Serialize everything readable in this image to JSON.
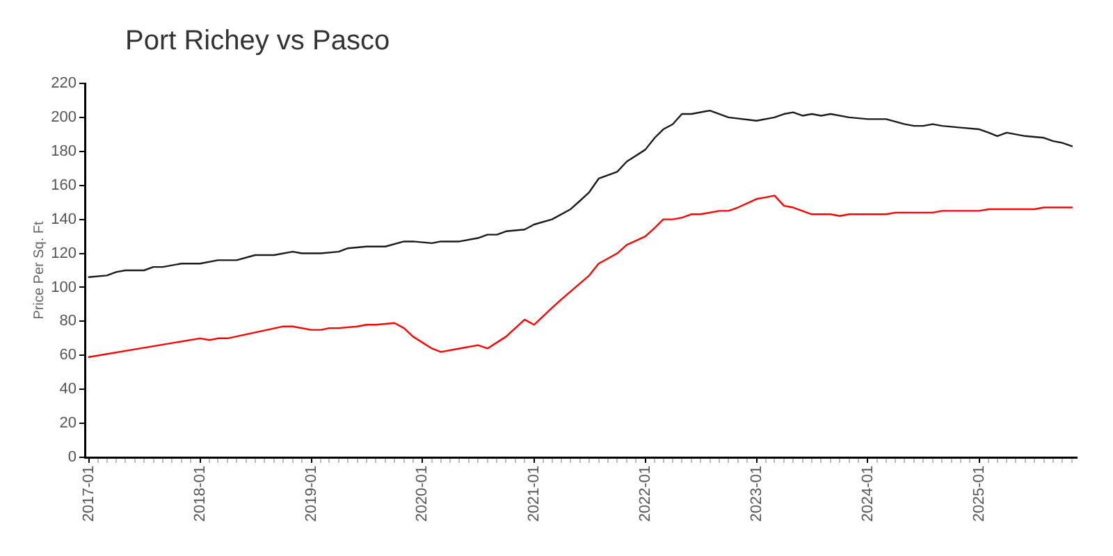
{
  "chart_data": {
    "type": "line",
    "title": "Port Richey vs Pasco",
    "ylabel": "Price Per Sq. Ft",
    "marker": "none",
    "xlim": [
      "2016-12-19",
      "2025-11-17"
    ],
    "ylim": [
      0,
      220
    ],
    "yticks": [
      0,
      20,
      40,
      60,
      80,
      100,
      120,
      140,
      160,
      180,
      200,
      220
    ],
    "xticks": [
      "2017-01",
      {
        "value": "2017-02",
        "label": null
      },
      {
        "value": "2017-03",
        "label": null
      },
      {
        "value": "2017-04",
        "label": null
      },
      {
        "value": "2017-05",
        "label": null
      },
      {
        "value": "2017-06",
        "label": null
      },
      {
        "value": "2017-07",
        "label": null
      },
      {
        "value": "2017-08",
        "label": null
      },
      {
        "value": "2017-09",
        "label": null
      },
      {
        "value": "2017-10",
        "label": null
      },
      {
        "value": "2017-11",
        "label": null
      },
      {
        "value": "2017-12",
        "label": null
      },
      "2018-01",
      {
        "value": "2018-02",
        "label": null
      },
      {
        "value": "2018-03",
        "label": null
      },
      {
        "value": "2018-04",
        "label": null
      },
      {
        "value": "2018-05",
        "label": null
      },
      {
        "value": "2018-06",
        "label": null
      },
      {
        "value": "2018-07",
        "label": null
      },
      {
        "value": "2018-08",
        "label": null
      },
      {
        "value": "2018-09",
        "label": null
      },
      {
        "value": "2018-10",
        "label": null
      },
      {
        "value": "2018-11",
        "label": null
      },
      {
        "value": "2018-12",
        "label": null
      },
      "2019-01",
      {
        "value": "2019-02",
        "label": null
      },
      {
        "value": "2019-03",
        "label": null
      },
      {
        "value": "2019-04",
        "label": null
      },
      {
        "value": "2019-05",
        "label": null
      },
      {
        "value": "2019-06",
        "label": null
      },
      {
        "value": "2019-07",
        "label": null
      },
      {
        "value": "2019-08",
        "label": null
      },
      {
        "value": "2019-09",
        "label": null
      },
      {
        "value": "2019-10",
        "label": null
      },
      {
        "value": "2019-11",
        "label": null
      },
      {
        "value": "2019-12",
        "label": null
      },
      "2020-01",
      {
        "value": "2020-02",
        "label": null
      },
      {
        "value": "2020-03",
        "label": null
      },
      {
        "value": "2020-04",
        "label": null
      },
      {
        "value": "2020-05",
        "label": null
      },
      {
        "value": "2020-06",
        "label": null
      },
      {
        "value": "2020-07",
        "label": null
      },
      {
        "value": "2020-08",
        "label": null
      },
      {
        "value": "2020-09",
        "label": null
      },
      {
        "value": "2020-10",
        "label": null
      },
      {
        "value": "2020-11",
        "label": null
      },
      {
        "value": "2020-12",
        "label": null
      },
      "2021-01",
      {
        "value": "2021-02",
        "label": null
      },
      {
        "value": "2021-03",
        "label": null
      },
      {
        "value": "2021-04",
        "label": null
      },
      {
        "value": "2021-05",
        "label": null
      },
      {
        "value": "2021-06",
        "label": null
      },
      {
        "value": "2021-07",
        "label": null
      },
      {
        "value": "2021-08",
        "label": null
      },
      {
        "value": "2021-09",
        "label": null
      },
      {
        "value": "2021-10",
        "label": null
      },
      {
        "value": "2021-11",
        "label": null
      },
      {
        "value": "2021-12",
        "label": null
      },
      "2022-01",
      {
        "value": "2022-02",
        "label": null
      },
      {
        "value": "2022-03",
        "label": null
      },
      {
        "value": "2022-04",
        "label": null
      },
      {
        "value": "2022-05",
        "label": null
      },
      {
        "value": "2022-06",
        "label": null
      },
      {
        "value": "2022-07",
        "label": null
      },
      {
        "value": "2022-08",
        "label": null
      },
      {
        "value": "2022-09",
        "label": null
      },
      {
        "value": "2022-10",
        "label": null
      },
      {
        "value": "2022-11",
        "label": null
      },
      {
        "value": "2022-12",
        "label": null
      },
      "2023-01",
      {
        "value": "2023-02",
        "label": null
      },
      {
        "value": "2023-03",
        "label": null
      },
      {
        "value": "2023-04",
        "label": null
      },
      {
        "value": "2023-05",
        "label": null
      },
      {
        "value": "2023-06",
        "label": null
      },
      {
        "value": "2023-07",
        "label": null
      },
      {
        "value": "2023-08",
        "label": null
      },
      {
        "value": "2023-09",
        "label": null
      },
      {
        "value": "2023-10",
        "label": null
      },
      {
        "value": "2023-11",
        "label": null
      },
      {
        "value": "2023-12",
        "label": null
      },
      "2024-01",
      {
        "value": "2024-02",
        "label": null
      },
      {
        "value": "2024-03",
        "label": null
      },
      {
        "value": "2024-04",
        "label": null
      },
      {
        "value": "2024-05",
        "label": null
      },
      {
        "value": "2024-06",
        "label": null
      },
      {
        "value": "2024-07",
        "label": null
      },
      {
        "value": "2024-08",
        "label": null
      },
      {
        "value": "2024-09",
        "label": null
      },
      {
        "value": "2024-10",
        "label": null
      },
      {
        "value": "2024-11",
        "label": null
      },
      {
        "value": "2024-12",
        "label": null
      },
      "2025-01",
      {
        "value": "2025-02",
        "label": null
      },
      {
        "value": "2025-03",
        "label": null
      },
      {
        "value": "2025-04",
        "label": null
      },
      {
        "value": "2025-05",
        "label": null
      },
      {
        "value": "2025-06",
        "label": null
      },
      {
        "value": "2025-07",
        "label": null
      },
      {
        "value": "2025-08",
        "label": null
      },
      {
        "value": "2025-09",
        "label": null
      },
      {
        "value": "2025-10",
        "label": null
      },
      {
        "value": "2025-11",
        "label": null
      }
    ],
    "series": [
      {
        "color": "#1a1a1a",
        "x": [
          "2017-01",
          "2017-03",
          "2017-04",
          "2017-05",
          "2017-07",
          "2017-08",
          "2017-09",
          "2017-11",
          "2018-01",
          "2018-03",
          "2018-05",
          "2018-07",
          "2018-09",
          "2018-11",
          "2018-12",
          "2019-02",
          "2019-04",
          "2019-05",
          "2019-07",
          "2019-09",
          "2019-11",
          "2019-12",
          "2020-02",
          "2020-03",
          "2020-05",
          "2020-07",
          "2020-08",
          "2020-09",
          "2020-10",
          "2020-12",
          "2021-01",
          "2021-03",
          "2021-05",
          "2021-06",
          "2021-07",
          "2021-08",
          "2021-10",
          "2021-11",
          "2022-01",
          "2022-02",
          "2022-03",
          "2022-04",
          "2022-05",
          "2022-06",
          "2022-08",
          "2022-10",
          "2023-01",
          "2023-03",
          "2023-04",
          "2023-05",
          "2023-06",
          "2023-07",
          "2023-08",
          "2023-09",
          "2023-11",
          "2024-01",
          "2024-03",
          "2024-05",
          "2024-06",
          "2024-07",
          "2024-08",
          "2024-09",
          "2024-11",
          "2025-01",
          "2025-02",
          "2025-03",
          "2025-04",
          "2025-06",
          "2025-08",
          "2025-09",
          "2025-10",
          "2025-11"
        ],
        "values": [
          106,
          107,
          109,
          110,
          110,
          112,
          112,
          114,
          114,
          116,
          116,
          119,
          119,
          121,
          120,
          120,
          121,
          123,
          124,
          124,
          127,
          127,
          126,
          127,
          127,
          129,
          131,
          131,
          133,
          134,
          137,
          140,
          146,
          151,
          156,
          164,
          168,
          174,
          181,
          188,
          193,
          196,
          202,
          202,
          204,
          200,
          198,
          200,
          202,
          203,
          201,
          202,
          201,
          202,
          200,
          199,
          199,
          196,
          195,
          195,
          196,
          195,
          194,
          193,
          191,
          189,
          191,
          189,
          188,
          186,
          185,
          183
        ]
      },
      {
        "color": "#ff0000",
        "x": [
          "2017-01",
          "2018-01",
          "2018-02",
          "2018-03",
          "2018-04",
          "2018-10",
          "2018-11",
          "2019-01",
          "2019-02",
          "2019-03",
          "2019-04",
          "2019-06",
          "2019-07",
          "2019-08",
          "2019-10",
          "2019-11",
          "2019-12",
          "2020-02",
          "2020-03",
          "2020-05",
          "2020-07",
          "2020-08",
          "2020-10",
          "2020-12",
          "2021-01",
          "2021-03",
          "2021-04",
          "2021-07",
          "2021-08",
          "2021-10",
          "2021-11",
          "2022-01",
          "2022-02",
          "2022-03",
          "2022-04",
          "2022-05",
          "2022-06",
          "2022-07",
          "2022-09",
          "2022-10",
          "2022-11",
          "2023-01",
          "2023-02",
          "2023-03",
          "2023-04",
          "2023-05",
          "2023-07",
          "2023-09",
          "2023-10",
          "2023-11",
          "2024-03",
          "2024-04",
          "2024-08",
          "2024-09",
          "2025-01",
          "2025-02",
          "2025-07",
          "2025-08",
          "2025-11"
        ],
        "values": [
          59,
          70,
          69,
          70,
          70,
          77,
          77,
          75,
          75,
          76,
          76,
          77,
          78,
          78,
          79,
          76,
          71,
          64,
          62,
          64,
          66,
          64,
          71,
          81,
          78,
          88,
          93,
          107,
          114,
          120,
          125,
          130,
          135,
          140,
          140,
          141,
          143,
          143,
          145,
          145,
          147,
          152,
          153,
          154,
          148,
          147,
          143,
          143,
          142,
          143,
          143,
          144,
          144,
          145,
          145,
          146,
          146,
          147,
          147
        ]
      }
    ]
  }
}
